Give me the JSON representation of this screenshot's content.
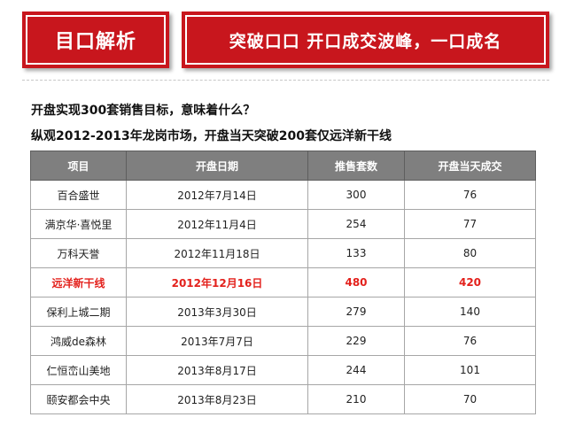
{
  "header": {
    "left_title": "目口解析",
    "right_title": "突破口口 开口成交波峰，一口成名"
  },
  "content": {
    "line1": "开盘实现300套销售目标，意味着什么？",
    "line2": "纵观2012-2013年龙岗市场，开盘当天突破200套仅远洋新干线"
  },
  "table": {
    "headers": [
      "项目",
      "开盘日期",
      "推售套数",
      "开盘当天成交"
    ],
    "rows": [
      [
        "百合盛世",
        "2012年7月14日",
        "300",
        "76"
      ],
      [
        "满京华·喜悦里",
        "2012年11月4日",
        "254",
        "77"
      ],
      [
        "万科天誉",
        "2012年11月18日",
        "133",
        "80"
      ],
      [
        "远洋新干线",
        "2012年12月16日",
        "480",
        "420"
      ],
      [
        "保利上城二期",
        "2013年3月30日",
        "279",
        "140"
      ],
      [
        "鸿威de森林",
        "2013年7月7日",
        "229",
        "76"
      ],
      [
        "仁恒峦山美地",
        "2013年8月17日",
        "244",
        "101"
      ],
      [
        "颐安都会中央",
        "2013年8月23日",
        "210",
        "70"
      ]
    ],
    "highlight_row": 3
  },
  "colors": {
    "banner_red": "#c8161d",
    "header_gray": "#7f7f7f",
    "highlight_red": "#e3211c"
  }
}
